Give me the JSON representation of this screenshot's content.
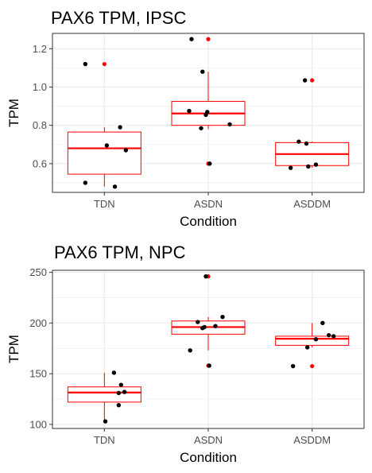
{
  "chart_data": [
    {
      "type": "box",
      "title": "PAX6 TPM, IPSC",
      "xlabel": "Condition",
      "ylabel": "TPM",
      "categories": [
        "TDN",
        "ASDN",
        "ASDDM"
      ],
      "ylim": [
        0.45,
        1.28
      ],
      "yticks": [
        0.6,
        0.8,
        1.0,
        1.2
      ],
      "ytick_labels": [
        "0.6",
        "0.8",
        "1.0",
        "1.2"
      ],
      "grid": true,
      "box_color": "#ff0000",
      "point_color": "#000000",
      "outlier_color": "#ff0000",
      "boxes": [
        {
          "category": "TDN",
          "q1": 0.545,
          "median": 0.68,
          "q3": 0.765,
          "whisker_low": 0.48,
          "whisker_high": 0.79,
          "outliers": [
            1.12
          ]
        },
        {
          "category": "ASDN",
          "q1": 0.8,
          "median": 0.862,
          "q3": 0.925,
          "whisker_low": 0.78,
          "whisker_high": 1.08,
          "outliers": [
            0.6,
            1.25
          ]
        },
        {
          "category": "ASDDM",
          "q1": 0.59,
          "median": 0.65,
          "q3": 0.71,
          "whisker_low": 0.578,
          "whisker_high": 0.715,
          "outliers": [
            1.035
          ]
        }
      ],
      "points": [
        {
          "category": "TDN",
          "offset": -0.4,
          "y": 1.12
        },
        {
          "category": "TDN",
          "offset": -0.4,
          "y": 0.5
        },
        {
          "category": "TDN",
          "offset": 0.05,
          "y": 0.695
        },
        {
          "category": "TDN",
          "offset": 0.22,
          "y": 0.48
        },
        {
          "category": "TDN",
          "offset": 0.33,
          "y": 0.79
        },
        {
          "category": "TDN",
          "offset": 0.45,
          "y": 0.67
        },
        {
          "category": "ASDN",
          "offset": -0.4,
          "y": 0.875
        },
        {
          "category": "ASDN",
          "offset": -0.35,
          "y": 1.25
        },
        {
          "category": "ASDN",
          "offset": -0.05,
          "y": 0.855
        },
        {
          "category": "ASDN",
          "offset": -0.02,
          "y": 0.87
        },
        {
          "category": "ASDN",
          "offset": -0.15,
          "y": 0.785
        },
        {
          "category": "ASDN",
          "offset": -0.12,
          "y": 1.08
        },
        {
          "category": "ASDN",
          "offset": 0.03,
          "y": 0.6
        },
        {
          "category": "ASDN",
          "offset": 0.45,
          "y": 0.805
        },
        {
          "category": "ASDDM",
          "offset": -0.45,
          "y": 0.578
        },
        {
          "category": "ASDDM",
          "offset": -0.28,
          "y": 0.715
        },
        {
          "category": "ASDDM",
          "offset": -0.15,
          "y": 1.035
        },
        {
          "category": "ASDDM",
          "offset": -0.12,
          "y": 0.705
        },
        {
          "category": "ASDDM",
          "offset": -0.08,
          "y": 0.585
        },
        {
          "category": "ASDDM",
          "offset": 0.08,
          "y": 0.595
        }
      ]
    },
    {
      "type": "box",
      "title": "PAX6 TPM, NPC",
      "xlabel": "Condition",
      "ylabel": "TPM",
      "categories": [
        "TDN",
        "ASDN",
        "ASDDM"
      ],
      "ylim": [
        96,
        252
      ],
      "yticks": [
        100,
        150,
        200,
        250
      ],
      "ytick_labels": [
        "100",
        "150",
        "200",
        "250"
      ],
      "grid": true,
      "box_color": "#ff0000",
      "point_color": "#000000",
      "outlier_color": "#ff0000",
      "boxes": [
        {
          "category": "TDN",
          "q1": 122,
          "median": 131.5,
          "q3": 137,
          "whisker_low": 103,
          "whisker_high": 151,
          "outliers": []
        },
        {
          "category": "ASDN",
          "q1": 189,
          "median": 196,
          "q3": 202,
          "whisker_low": 173,
          "whisker_high": 206,
          "outliers": [
            158,
            246
          ]
        },
        {
          "category": "ASDDM",
          "q1": 178,
          "median": 184.5,
          "q3": 187,
          "whisker_low": 176,
          "whisker_high": 200,
          "outliers": [
            157.5
          ]
        }
      ],
      "points": [
        {
          "category": "TDN",
          "offset": 0.2,
          "y": 151
        },
        {
          "category": "TDN",
          "offset": 0.35,
          "y": 139
        },
        {
          "category": "TDN",
          "offset": 0.3,
          "y": 131
        },
        {
          "category": "TDN",
          "offset": 0.42,
          "y": 132
        },
        {
          "category": "TDN",
          "offset": 0.3,
          "y": 119
        },
        {
          "category": "TDN",
          "offset": 0.02,
          "y": 103
        },
        {
          "category": "ASDN",
          "offset": -0.38,
          "y": 173
        },
        {
          "category": "ASDN",
          "offset": -0.22,
          "y": 201
        },
        {
          "category": "ASDN",
          "offset": -0.12,
          "y": 195
        },
        {
          "category": "ASDN",
          "offset": -0.08,
          "y": 196
        },
        {
          "category": "ASDN",
          "offset": -0.05,
          "y": 246
        },
        {
          "category": "ASDN",
          "offset": 0.02,
          "y": 158
        },
        {
          "category": "ASDN",
          "offset": 0.15,
          "y": 197
        },
        {
          "category": "ASDN",
          "offset": 0.3,
          "y": 206
        },
        {
          "category": "ASDDM",
          "offset": -0.4,
          "y": 157.5
        },
        {
          "category": "ASDDM",
          "offset": -0.1,
          "y": 176
        },
        {
          "category": "ASDDM",
          "offset": 0.08,
          "y": 184
        },
        {
          "category": "ASDDM",
          "offset": 0.22,
          "y": 200
        },
        {
          "category": "ASDDM",
          "offset": 0.35,
          "y": 188
        },
        {
          "category": "ASDDM",
          "offset": 0.45,
          "y": 187
        }
      ]
    }
  ]
}
